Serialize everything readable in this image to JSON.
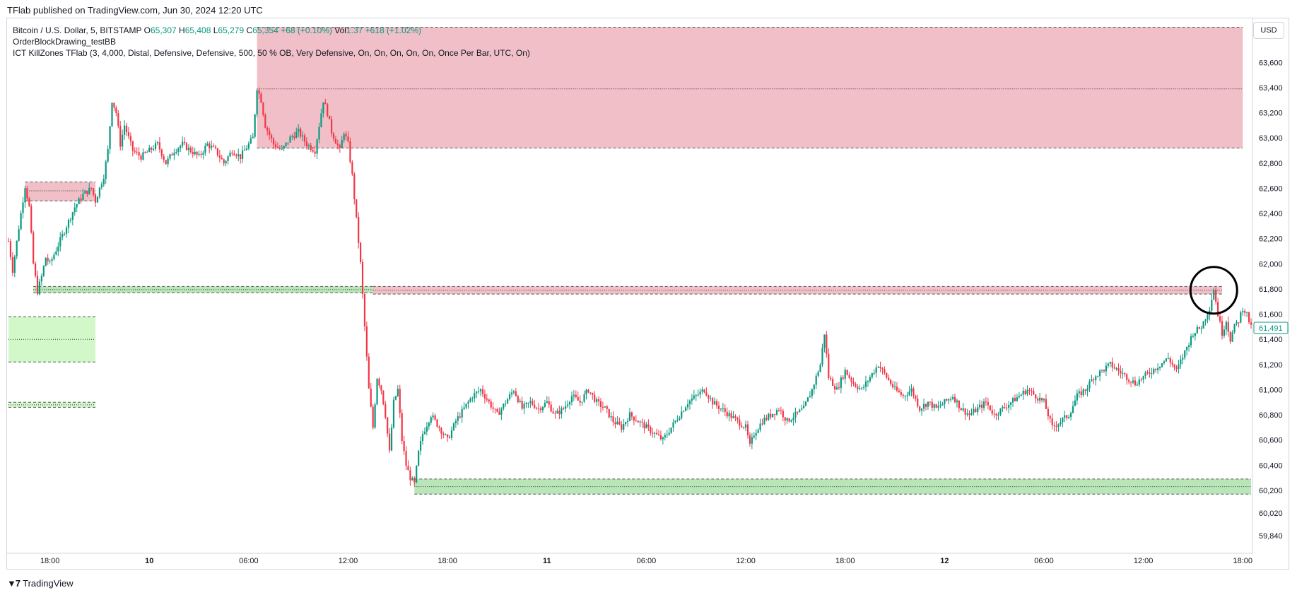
{
  "header": {
    "published": "TFlab published on TradingView.com, Jun 30, 2024 12:20 UTC"
  },
  "legend": {
    "symbol": "Bitcoin / U.S. Dollar, 5, BITSTAMP",
    "o_label": "O",
    "o_value": "65,307",
    "h_label": "H",
    "h_value": "65,408",
    "l_label": "L",
    "l_value": "65,279",
    "c_label": "C",
    "c_value": "65,354",
    "change": "+68 (+0.10%)",
    "vol_label": "Vol",
    "vol_value": "1.37",
    "vol_change": "+618 (+1.02%)",
    "indicator1": "OrderBlockDrawing_testBB",
    "indicator2": "ICT KillZones TFlab (3, 4,000, Distal, Defensive, Defensive, 500, 50 % OB, Very Defensive, On, On, On, On, On, Once Per Bar, UTC, On)"
  },
  "currency_button": "USD",
  "footer": {
    "logo_icon": "tradingview-logo-icon",
    "brand": "TradingView"
  },
  "colors": {
    "up": "#089981",
    "down": "#f23645",
    "bearish_zone": "#f0bfc8",
    "bullish_zone": "#d2f8ca",
    "bullish_zone_strong": "#b9e6b9",
    "grid": "#ffffff",
    "axis_text": "#131722"
  },
  "chart_data": {
    "type": "candlestick",
    "timeframe": "5",
    "ylim": [
      59700,
      63950
    ],
    "y_ticks": [
      59840,
      60020,
      60200,
      60400,
      60600,
      60800,
      61000,
      61200,
      61400,
      61600,
      61800,
      62000,
      62200,
      62400,
      62600,
      62800,
      63000,
      63200,
      63400,
      63600
    ],
    "y_tick_labels": [
      "59,840",
      "60,020",
      "60,200",
      "60,400",
      "60,600",
      "60,800",
      "61,000",
      "61,200",
      "61,400",
      "61,600",
      "61,800",
      "62,000",
      "62,200",
      "62,400",
      "62,600",
      "62,800",
      "63,000",
      "63,200",
      "63,400",
      "63,600"
    ],
    "x_ticks": [
      {
        "label": "18:00",
        "t": 20
      },
      {
        "label": "10",
        "t": 44
      },
      {
        "label": "06:00",
        "t": 68
      },
      {
        "label": "12:00",
        "t": 92
      },
      {
        "label": "18:00",
        "t": 116
      },
      {
        "label": "11",
        "t": 140
      },
      {
        "label": "06:00",
        "t": 164
      },
      {
        "label": "12:00",
        "t": 188
      },
      {
        "label": "18:00",
        "t": 212
      },
      {
        "label": "12",
        "t": 236
      },
      {
        "label": "06:00",
        "t": 260
      },
      {
        "label": "12:00",
        "t": 284
      },
      {
        "label": "18:00",
        "t": 308
      }
    ],
    "x_range": [
      10,
      310
    ],
    "last_price": 61491,
    "last_price_label": "61,491",
    "price_path": [
      [
        10,
        62180
      ],
      [
        11,
        61950
      ],
      [
        13,
        62400
      ],
      [
        14,
        62620
      ],
      [
        15,
        62450
      ],
      [
        16,
        62000
      ],
      [
        17,
        61780
      ],
      [
        18,
        61900
      ],
      [
        19,
        62050
      ],
      [
        20,
        62000
      ],
      [
        22,
        62150
      ],
      [
        24,
        62300
      ],
      [
        26,
        62450
      ],
      [
        28,
        62550
      ],
      [
        30,
        62600
      ],
      [
        31,
        62500
      ],
      [
        33,
        62700
      ],
      [
        34,
        62900
      ],
      [
        35,
        63300
      ],
      [
        36,
        63200
      ],
      [
        37,
        62950
      ],
      [
        38,
        63100
      ],
      [
        40,
        62900
      ],
      [
        42,
        62850
      ],
      [
        44,
        62900
      ],
      [
        46,
        62950
      ],
      [
        48,
        62800
      ],
      [
        50,
        62900
      ],
      [
        52,
        62950
      ],
      [
        54,
        62900
      ],
      [
        56,
        62850
      ],
      [
        58,
        62950
      ],
      [
        60,
        62900
      ],
      [
        62,
        62800
      ],
      [
        64,
        62900
      ],
      [
        66,
        62850
      ],
      [
        68,
        62950
      ],
      [
        69,
        63000
      ],
      [
        70,
        63400
      ],
      [
        71,
        63300
      ],
      [
        72,
        63100
      ],
      [
        74,
        62950
      ],
      [
        76,
        62900
      ],
      [
        78,
        63000
      ],
      [
        80,
        63050
      ],
      [
        82,
        62950
      ],
      [
        84,
        62900
      ],
      [
        85,
        63100
      ],
      [
        86,
        63300
      ],
      [
        87,
        63200
      ],
      [
        88,
        63050
      ],
      [
        90,
        62900
      ],
      [
        91,
        63050
      ],
      [
        92,
        62950
      ],
      [
        93,
        62700
      ],
      [
        94,
        62350
      ],
      [
        95,
        62000
      ],
      [
        96,
        61500
      ],
      [
        97,
        61000
      ],
      [
        98,
        60700
      ],
      [
        99,
        61100
      ],
      [
        100,
        61000
      ],
      [
        101,
        60800
      ],
      [
        102,
        60500
      ],
      [
        103,
        60900
      ],
      [
        104,
        61000
      ],
      [
        105,
        60600
      ],
      [
        106,
        60400
      ],
      [
        107,
        60300
      ],
      [
        108,
        60250
      ],
      [
        109,
        60500
      ],
      [
        110,
        60650
      ],
      [
        112,
        60800
      ],
      [
        114,
        60700
      ],
      [
        116,
        60600
      ],
      [
        118,
        60750
      ],
      [
        120,
        60850
      ],
      [
        122,
        60950
      ],
      [
        124,
        61000
      ],
      [
        126,
        60900
      ],
      [
        128,
        60800
      ],
      [
        130,
        60900
      ],
      [
        132,
        61000
      ],
      [
        134,
        60850
      ],
      [
        136,
        60900
      ],
      [
        138,
        60850
      ],
      [
        140,
        60900
      ],
      [
        142,
        60800
      ],
      [
        144,
        60850
      ],
      [
        146,
        60950
      ],
      [
        148,
        60900
      ],
      [
        150,
        61000
      ],
      [
        152,
        60900
      ],
      [
        154,
        60850
      ],
      [
        156,
        60750
      ],
      [
        158,
        60700
      ],
      [
        160,
        60800
      ],
      [
        162,
        60750
      ],
      [
        164,
        60700
      ],
      [
        166,
        60650
      ],
      [
        168,
        60600
      ],
      [
        170,
        60700
      ],
      [
        172,
        60800
      ],
      [
        174,
        60900
      ],
      [
        176,
        60950
      ],
      [
        178,
        61000
      ],
      [
        180,
        60900
      ],
      [
        182,
        60850
      ],
      [
        184,
        60800
      ],
      [
        186,
        60750
      ],
      [
        188,
        60700
      ],
      [
        189,
        60550
      ],
      [
        190,
        60650
      ],
      [
        192,
        60750
      ],
      [
        194,
        60800
      ],
      [
        196,
        60850
      ],
      [
        198,
        60750
      ],
      [
        200,
        60800
      ],
      [
        202,
        60850
      ],
      [
        204,
        61000
      ],
      [
        206,
        61200
      ],
      [
        207,
        61450
      ],
      [
        208,
        61100
      ],
      [
        210,
        61000
      ],
      [
        212,
        61150
      ],
      [
        214,
        61050
      ],
      [
        216,
        61000
      ],
      [
        218,
        61100
      ],
      [
        220,
        61200
      ],
      [
        222,
        61100
      ],
      [
        224,
        61000
      ],
      [
        226,
        60950
      ],
      [
        228,
        61000
      ],
      [
        230,
        60850
      ],
      [
        232,
        60900
      ],
      [
        234,
        60850
      ],
      [
        236,
        60900
      ],
      [
        238,
        60950
      ],
      [
        240,
        60850
      ],
      [
        242,
        60800
      ],
      [
        244,
        60850
      ],
      [
        246,
        60900
      ],
      [
        248,
        60800
      ],
      [
        250,
        60850
      ],
      [
        252,
        60900
      ],
      [
        254,
        60950
      ],
      [
        256,
        61000
      ],
      [
        258,
        60950
      ],
      [
        260,
        60900
      ],
      [
        262,
        60700
      ],
      [
        264,
        60750
      ],
      [
        266,
        60800
      ],
      [
        268,
        60950
      ],
      [
        270,
        61000
      ],
      [
        272,
        61100
      ],
      [
        274,
        61150
      ],
      [
        276,
        61200
      ],
      [
        278,
        61150
      ],
      [
        280,
        61100
      ],
      [
        282,
        61050
      ],
      [
        284,
        61100
      ],
      [
        286,
        61150
      ],
      [
        288,
        61200
      ],
      [
        290,
        61250
      ],
      [
        292,
        61150
      ],
      [
        294,
        61300
      ],
      [
        296,
        61450
      ],
      [
        298,
        61500
      ],
      [
        300,
        61650
      ],
      [
        301,
        61800
      ],
      [
        302,
        61600
      ],
      [
        303,
        61450
      ],
      [
        304,
        61550
      ],
      [
        305,
        61400
      ],
      [
        306,
        61500
      ],
      [
        307,
        61550
      ],
      [
        308,
        61650
      ],
      [
        309,
        61600
      ],
      [
        310,
        61491
      ]
    ],
    "zones": [
      {
        "type": "bearish",
        "x_start": 70,
        "x_end": 308,
        "top": 63880,
        "bottom": 62920,
        "mid": 63390
      },
      {
        "type": "bearish",
        "x_start": 14,
        "x_end": 31,
        "top": 62650,
        "bottom": 62500,
        "mid": 62580
      },
      {
        "type": "bearish",
        "x_start": 98,
        "x_end": 303,
        "top": 61820,
        "bottom": 61760,
        "mid": 61790
      },
      {
        "type": "bullish",
        "x_start": 16,
        "x_end": 98,
        "top": 61820,
        "bottom": 61770,
        "mid": 61795
      },
      {
        "type": "bullish_weak",
        "x_start": 10,
        "x_end": 31,
        "top": 61580,
        "bottom": 61220,
        "mid": 61400
      },
      {
        "type": "bullish_weak",
        "x_start": 10,
        "x_end": 31,
        "top": 60900,
        "bottom": 60860,
        "mid": 60880
      },
      {
        "type": "bullish",
        "x_start": 108,
        "x_end": 310,
        "top": 60290,
        "bottom": 60170,
        "mid": 60230
      }
    ],
    "highlight_circle": {
      "t": 301,
      "price": 61790
    }
  }
}
